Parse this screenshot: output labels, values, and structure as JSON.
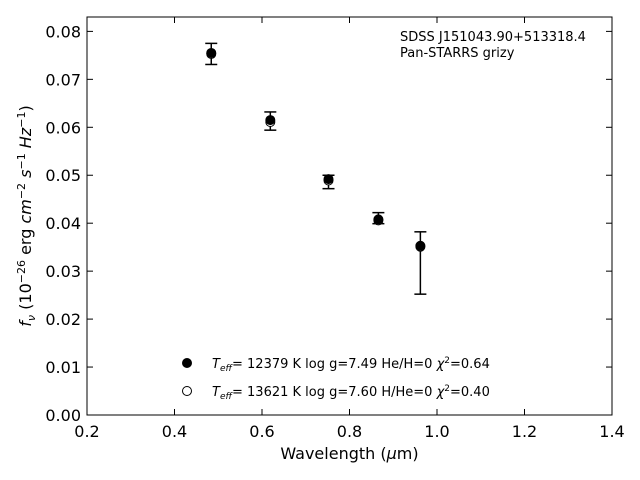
{
  "chart_data": {
    "type": "scatter",
    "xlabel": "Wavelength (μm)",
    "ylabel": "f_ν (10^−26 erg cm^−2 s^−1 Hz^−1)",
    "xlim": [
      0.2,
      1.4
    ],
    "ylim": [
      0.0,
      0.083
    ],
    "xticks": [
      "0.2",
      "0.4",
      "0.6",
      "0.8",
      "1.0",
      "1.2",
      "1.4"
    ],
    "yticks": [
      "0.00",
      "0.01",
      "0.02",
      "0.03",
      "0.04",
      "0.05",
      "0.06",
      "0.07",
      "0.08"
    ],
    "annotation_lines": [
      "SDSS J151043.90+513318.4",
      "Pan-STARRS grizy"
    ],
    "observed": {
      "x": [
        0.484,
        0.619,
        0.752,
        0.866,
        0.962
      ],
      "y": [
        0.0753,
        0.0612,
        0.0485,
        0.0405,
        0.0352
      ],
      "err_low": [
        0.0731,
        0.0594,
        0.0472,
        0.0399,
        0.0252
      ],
      "err_high": [
        0.0775,
        0.0632,
        0.05,
        0.0422,
        0.0382
      ]
    },
    "series": [
      {
        "name": "T_eff= 12379 K  log g=7.49  He/H=0  χ²=0.64",
        "marker": "filled",
        "x": [
          0.484,
          0.619,
          0.752,
          0.866,
          0.962
        ],
        "y": [
          0.0755,
          0.0615,
          0.0492,
          0.0408,
          0.0353
        ]
      },
      {
        "name": "T_eff= 13621 K  log g=7.60  H/He=0  χ²=0.40",
        "marker": "open",
        "x": [
          0.484,
          0.619,
          0.752,
          0.866,
          0.962
        ],
        "y": [
          0.0753,
          0.0611,
          0.0489,
          0.0406,
          0.0351
        ]
      }
    ],
    "legend_location": "lower-center",
    "grid": false
  }
}
